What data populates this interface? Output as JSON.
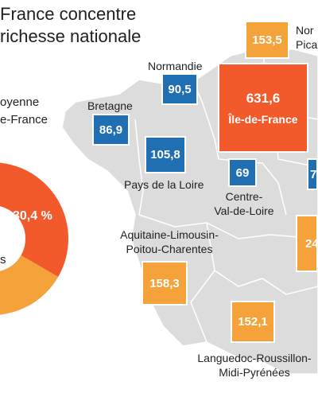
{
  "title_line1": "France concentre",
  "title_line2": "richesse nationale",
  "legend_line1": "oyenne",
  "legend_line2": "e-France",
  "donut": {
    "percent_label": "30,4 %",
    "cut_label": "s",
    "colors": {
      "red": "#f35a2b",
      "orange": "#f5a23a",
      "white": "#ffffff"
    }
  },
  "map_color": "#dcdcdc",
  "regions": {
    "normandie": {
      "name": "Normandie",
      "value": "90,5"
    },
    "bretagne": {
      "name": "Bretagne",
      "value": "86,9"
    },
    "pays_loire": {
      "name": "Pays de la Loire",
      "value": "105,8"
    },
    "centre": {
      "name_line1": "Centre-",
      "name_line2": "Val-de-Loire",
      "value": "69"
    },
    "idf": {
      "name": "Île-de-France",
      "value": "631,6"
    },
    "nord": {
      "name_line1": "Nor",
      "name_line2": "Pica",
      "value": "153,5"
    },
    "aquitaine": {
      "name_line1": "Aquitaine-Limousin-",
      "name_line2": "Poitou-Charentes",
      "value": "158,3"
    },
    "languedoc": {
      "name_line1": "Languedoc-Roussillon-",
      "name_line2": "Midi-Pyrénées",
      "value": "152,1"
    },
    "east_cut": {
      "value": "7"
    },
    "se_cut": {
      "value": "24"
    }
  }
}
